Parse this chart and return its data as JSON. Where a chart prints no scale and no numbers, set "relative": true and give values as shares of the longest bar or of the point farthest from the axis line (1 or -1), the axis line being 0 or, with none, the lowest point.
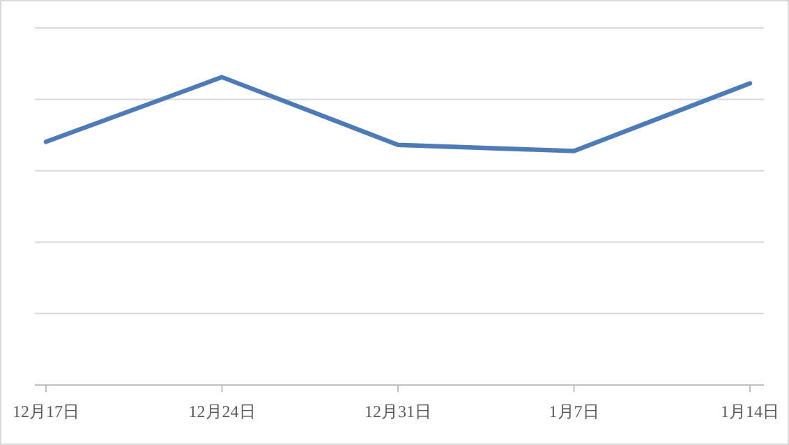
{
  "chart_data": {
    "type": "line",
    "relative": true,
    "categories": [
      "12月17日",
      "12月24日",
      "12月31日",
      "1月7日",
      "1月14日"
    ],
    "series": [
      {
        "color": "#4e7ab5",
        "values": [
          0.79,
          1,
          0.78,
          0.76,
          0.98
        ]
      }
    ],
    "grid": "y",
    "marker": "none",
    "line_style": "solid"
  }
}
